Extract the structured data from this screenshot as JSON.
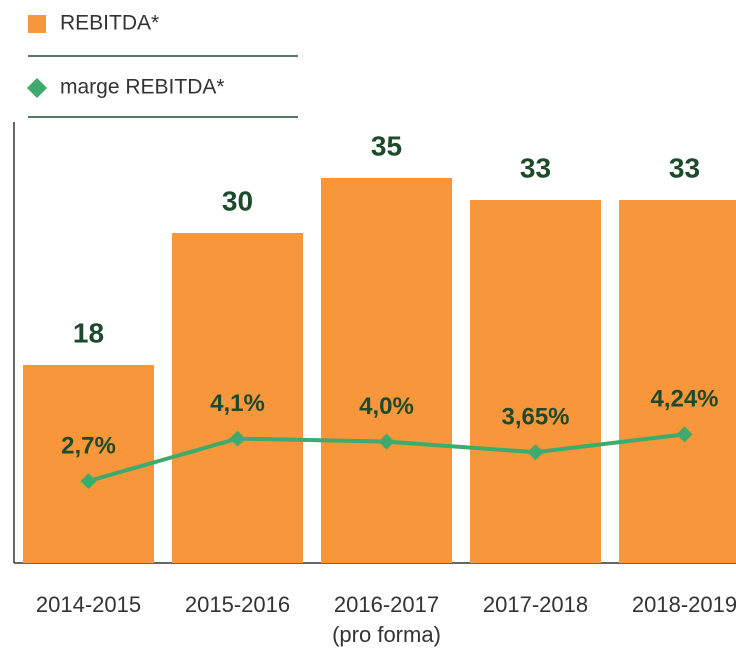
{
  "chart_data": {
    "type": "bar",
    "categories": [
      "2014-2015",
      "2015-2016",
      "2016-2017 (pro forma)",
      "2017-2018",
      "2018-2019"
    ],
    "series": [
      {
        "name": "REBITDA*",
        "type": "bar",
        "color": "#f7963a",
        "values": [
          18,
          30,
          35,
          33,
          33
        ]
      },
      {
        "name": "marge REBITDA*",
        "type": "line",
        "axis": "y2",
        "color": "#3daa6e",
        "values": [
          2.7,
          4.1,
          4.0,
          3.65,
          4.24
        ],
        "value_labels": [
          "2,7%",
          "4,1%",
          "4,0%",
          "3,65%",
          "4,24%"
        ]
      }
    ],
    "ylim": [
      0,
      40
    ],
    "y2lim": [
      0,
      14.5
    ],
    "label_color": "#1d4a2b"
  }
}
